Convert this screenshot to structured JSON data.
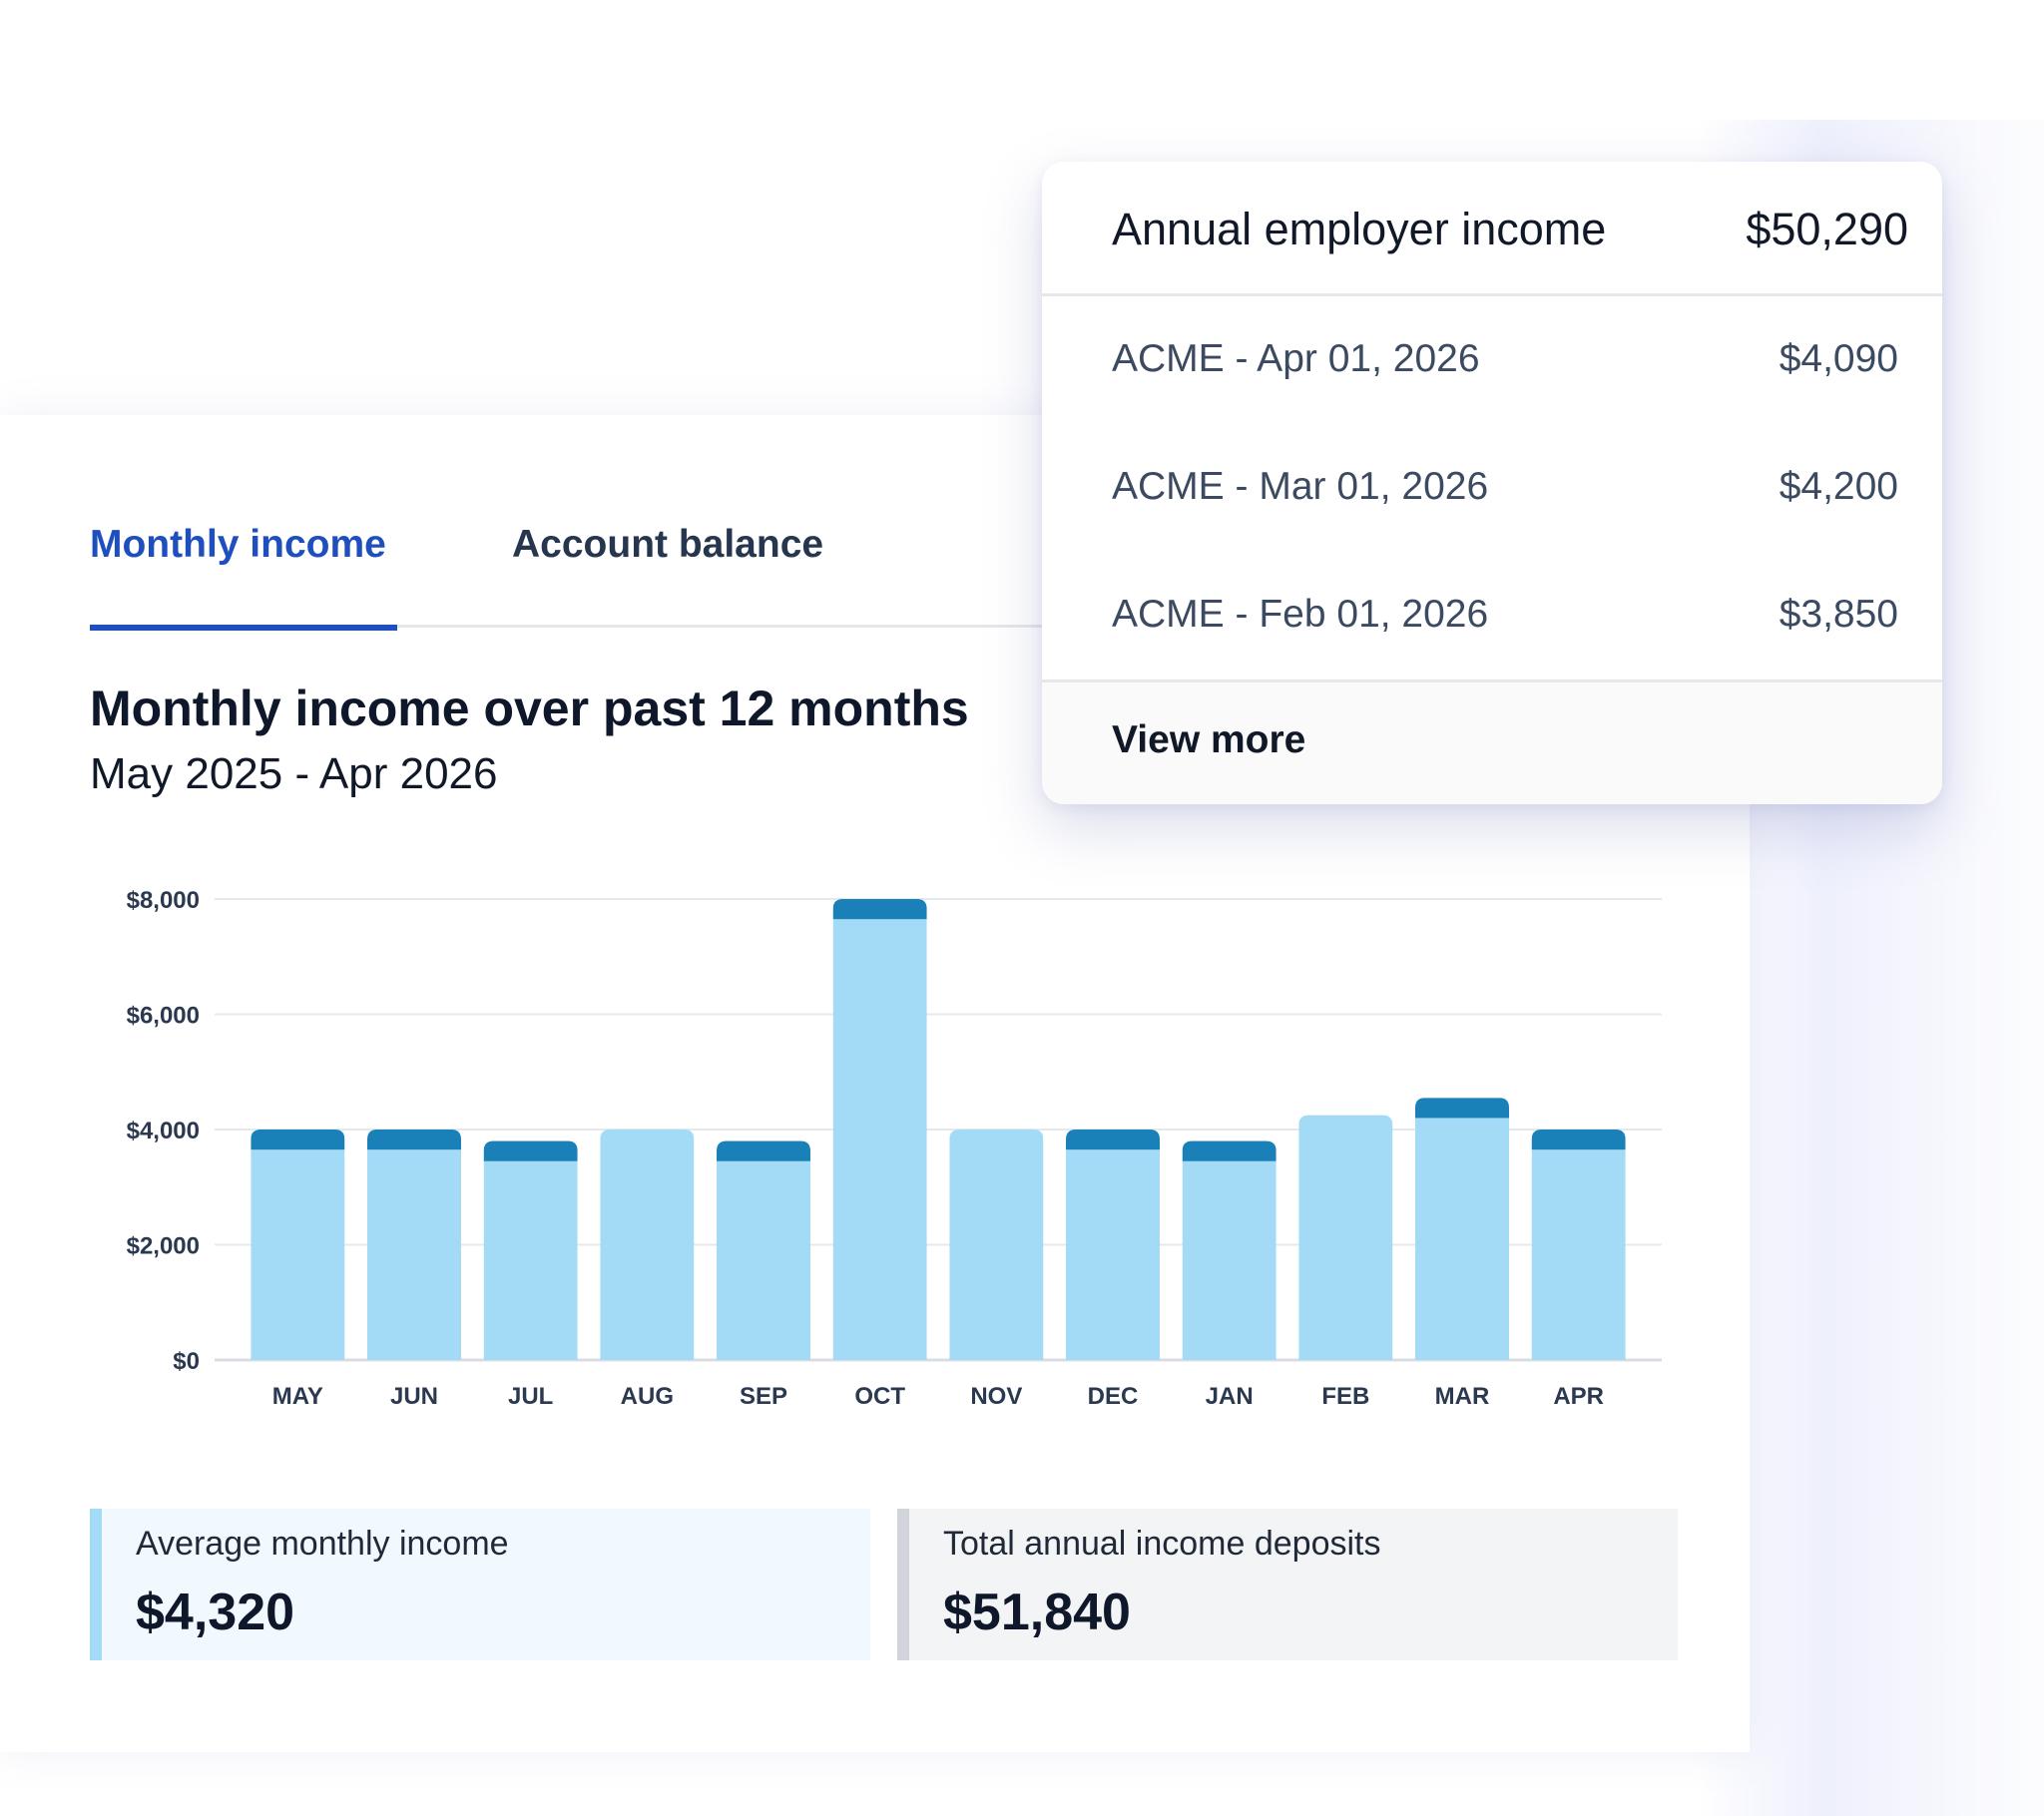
{
  "tabs": [
    {
      "label": "Monthly income",
      "active": true
    },
    {
      "label": "Account balance",
      "active": false
    }
  ],
  "chart": {
    "title": "Monthly income over past 12 months",
    "subtitle": "May 2025 - Apr 2026"
  },
  "chart_data": {
    "type": "bar",
    "stacked": true,
    "title": "Monthly income over past 12 months",
    "subtitle": "May 2025 - Apr 2026",
    "categories": [
      "MAY",
      "JUN",
      "JUL",
      "AUG",
      "SEP",
      "OCT",
      "NOV",
      "DEC",
      "JAN",
      "FEB",
      "MAR",
      "APR"
    ],
    "series": [
      {
        "color": "#a3dbf7",
        "values": [
          3650,
          3650,
          3450,
          4000,
          3450,
          7650,
          4000,
          3650,
          3450,
          4250,
          4200,
          3650
        ]
      },
      {
        "color": "#1a80b8",
        "values": [
          350,
          350,
          350,
          0,
          350,
          350,
          0,
          350,
          350,
          0,
          350,
          350
        ]
      }
    ],
    "y_ticks": [
      "$0",
      "$2,000",
      "$4,000",
      "$6,000",
      "$8,000"
    ],
    "ylim": [
      0,
      8000
    ],
    "xlabel": "",
    "ylabel": "",
    "grid": true,
    "legend": "none"
  },
  "stats": {
    "average_label": "Average monthly income",
    "average_value": "$4,320",
    "total_label": "Total annual income deposits",
    "total_value": "$51,840",
    "average_accent": "#a3dbf7",
    "total_accent": "#d1d5db"
  },
  "popover": {
    "title": "Annual employer income",
    "total": "$50,290",
    "rows": [
      {
        "label": "ACME - Apr 01, 2026",
        "amount": "$4,090"
      },
      {
        "label": "ACME - Mar 01, 2026",
        "amount": "$4,200"
      },
      {
        "label": "ACME - Feb 01, 2026",
        "amount": "$3,850"
      }
    ],
    "view_more": "View more"
  },
  "colors": {
    "accent": "#1f4fbf",
    "bar_light": "#a3dbf7",
    "bar_dark": "#1a80b8"
  }
}
